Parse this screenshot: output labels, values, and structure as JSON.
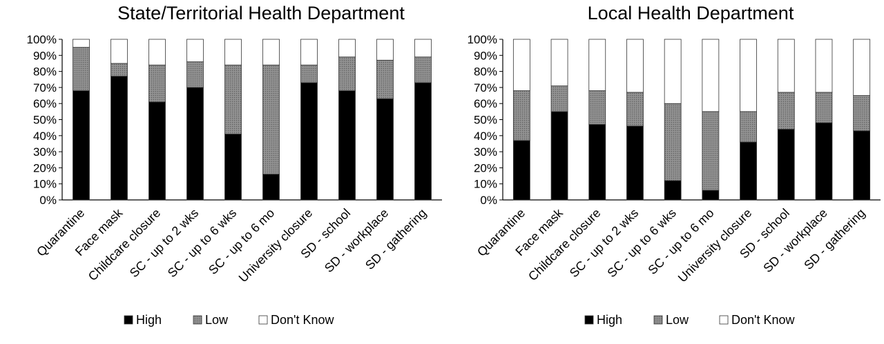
{
  "chart_data": [
    {
      "type": "bar",
      "stacked": true,
      "title": "State/Territorial Health Department",
      "xlabel": "",
      "ylabel": "",
      "ylim": [
        0,
        100
      ],
      "yticks": [
        "0%",
        "10%",
        "20%",
        "30%",
        "40%",
        "50%",
        "60%",
        "70%",
        "80%",
        "90%",
        "100%"
      ],
      "categories": [
        "Quarantine",
        "Face mask",
        "Childcare closure",
        "SC - up to 2 wks",
        "SC - up to 6 wks",
        "SC - up to 6 mo",
        "University closure",
        "SD - school",
        "SD - workplace",
        "SD - gathering"
      ],
      "series": [
        {
          "name": "High",
          "values": [
            68,
            77,
            61,
            70,
            41,
            16,
            73,
            68,
            63,
            73
          ]
        },
        {
          "name": "Low",
          "values": [
            27,
            8,
            23,
            16,
            43,
            68,
            11,
            21,
            24,
            16
          ]
        },
        {
          "name": "Don't Know",
          "values": [
            5,
            15,
            16,
            14,
            16,
            16,
            16,
            11,
            13,
            11
          ]
        }
      ],
      "legend": "bottom",
      "grid": false
    },
    {
      "type": "bar",
      "stacked": true,
      "title": "Local Health Department",
      "xlabel": "",
      "ylabel": "",
      "ylim": [
        0,
        100
      ],
      "yticks": [
        "0%",
        "10%",
        "20%",
        "30%",
        "40%",
        "50%",
        "60%",
        "70%",
        "80%",
        "90%",
        "100%"
      ],
      "categories": [
        "Quarantine",
        "Face mask",
        "Childcare closure",
        "SC - up to 2 wks",
        "SC - up to 6 wks",
        "SC - up to 6 mo",
        "University closure",
        "SD - school",
        "SD - workplace",
        "SD - gathering"
      ],
      "series": [
        {
          "name": "High",
          "values": [
            37,
            55,
            47,
            46,
            12,
            6,
            36,
            44,
            48,
            43
          ]
        },
        {
          "name": "Low",
          "values": [
            31,
            16,
            21,
            21,
            48,
            49,
            19,
            23,
            19,
            22
          ]
        },
        {
          "name": "Don't Know",
          "values": [
            32,
            29,
            32,
            33,
            40,
            45,
            45,
            33,
            33,
            35
          ]
        }
      ],
      "legend": "bottom",
      "grid": false
    }
  ],
  "colors": {
    "High": "#000000",
    "Low": "#8a8a8a",
    "Don't Know": "#ffffff",
    "outline": "#333333"
  }
}
